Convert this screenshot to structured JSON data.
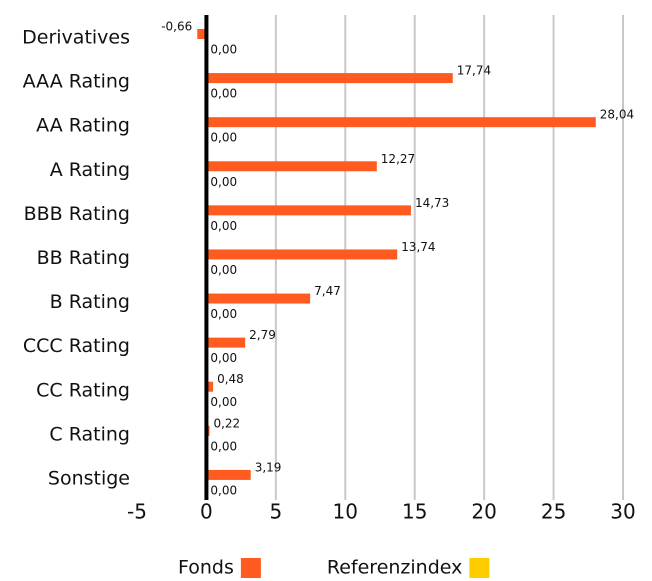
{
  "chart_data": {
    "type": "bar",
    "orientation": "horizontal",
    "categories": [
      "Derivatives",
      "AAA Rating",
      "AA Rating",
      "A Rating",
      "BBB Rating",
      "BB Rating",
      "B Rating",
      "CCC Rating",
      "CC Rating",
      "C Rating",
      "Sonstige"
    ],
    "series": [
      {
        "name": "Fonds",
        "color": "#ff5a1f",
        "values": [
          -0.66,
          17.74,
          28.04,
          12.27,
          14.73,
          13.74,
          7.47,
          2.79,
          0.48,
          0.22,
          3.19
        ],
        "value_labels": [
          "-0,66",
          "17,74",
          "28,04",
          "12,27",
          "14,73",
          "13,74",
          "7,47",
          "2,79",
          "0,48",
          "0,22",
          "3,19"
        ]
      },
      {
        "name": "Referenzindex",
        "color": "#ffcc00",
        "values": [
          0,
          0,
          0,
          0,
          0,
          0,
          0,
          0,
          0,
          0,
          0
        ],
        "value_labels": [
          "0,00",
          "0,00",
          "0,00",
          "0,00",
          "0,00",
          "0,00",
          "0,00",
          "0,00",
          "0,00",
          "0,00",
          "0,00"
        ]
      }
    ],
    "xlim": [
      -5,
      30
    ],
    "xticks": [
      -5,
      0,
      5,
      10,
      15,
      20,
      25,
      30
    ],
    "grid": true,
    "legend": "bottom"
  }
}
